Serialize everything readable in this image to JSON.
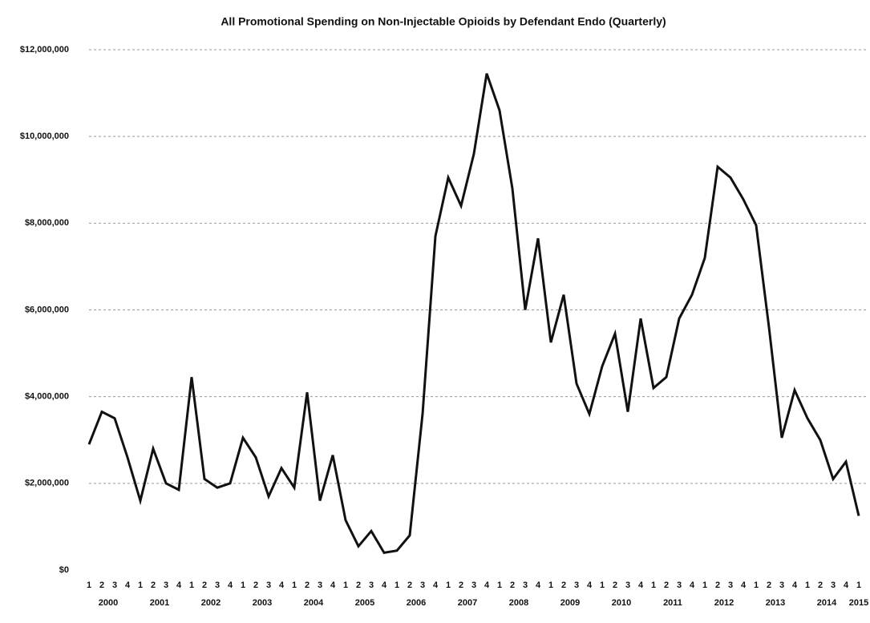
{
  "chart_data": {
    "type": "line",
    "title": "All Promotional Spending on Non-Injectable Opioids by Defendant Endo (Quarterly)",
    "categories": [
      "1",
      "2",
      "3",
      "4",
      "1",
      "2",
      "3",
      "4",
      "1",
      "2",
      "3",
      "4",
      "1",
      "2",
      "3",
      "4",
      "1",
      "2",
      "3",
      "4",
      "1",
      "2",
      "3",
      "4",
      "1",
      "2",
      "3",
      "4",
      "1",
      "2",
      "3",
      "4",
      "1",
      "2",
      "3",
      "4",
      "1",
      "2",
      "3",
      "4",
      "1",
      "2",
      "3",
      "4",
      "1",
      "2",
      "3",
      "4",
      "1",
      "2",
      "3",
      "4",
      "1",
      "2",
      "3",
      "4",
      "1",
      "2",
      "3",
      "4",
      "1"
    ],
    "years": [
      "2000",
      "2001",
      "2002",
      "2003",
      "2004",
      "2005",
      "2006",
      "2007",
      "2008",
      "2009",
      "2010",
      "2011",
      "2012",
      "2013",
      "2014",
      "2015"
    ],
    "values": [
      2900000,
      3650000,
      3500000,
      2600000,
      1600000,
      2800000,
      2000000,
      1850000,
      4450000,
      2100000,
      1900000,
      2000000,
      3050000,
      2600000,
      1700000,
      2350000,
      1900000,
      4100000,
      1600000,
      2650000,
      1150000,
      550000,
      900000,
      400000,
      450000,
      800000,
      3600000,
      7700000,
      9050000,
      8400000,
      9600000,
      11450000,
      10600000,
      8800000,
      6000000,
      7650000,
      5250000,
      6350000,
      4300000,
      3600000,
      4700000,
      5450000,
      3650000,
      5800000,
      4200000,
      4450000,
      5800000,
      6350000,
      7200000,
      9300000,
      9050000,
      8550000,
      7950000,
      5600000,
      3050000,
      4150000,
      3500000,
      3000000,
      2100000,
      2500000,
      1250000
    ],
    "color": "#111111",
    "ylim": [
      0,
      12000000
    ],
    "yticks": [
      {
        "value": 0,
        "label": "$0"
      },
      {
        "value": 2000000,
        "label": "$2,000,000"
      },
      {
        "value": 4000000,
        "label": "$4,000,000"
      },
      {
        "value": 6000000,
        "label": "$6,000,000"
      },
      {
        "value": 8000000,
        "label": "$8,000,000"
      },
      {
        "value": 10000000,
        "label": "$10,000,000"
      },
      {
        "value": 12000000,
        "label": "$12,000,000"
      }
    ],
    "grid": true
  }
}
